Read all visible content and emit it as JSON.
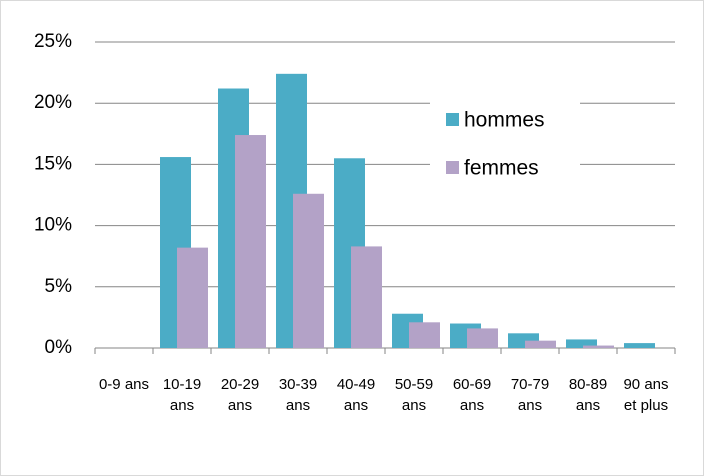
{
  "chart_data": {
    "type": "bar",
    "categories": [
      "0-9 ans",
      "10-19 ans",
      "20-29 ans",
      "30-39 ans",
      "40-49 ans",
      "50-59 ans",
      "60-69 ans",
      "70-79 ans",
      "80-89 ans",
      "90 ans et plus"
    ],
    "series": [
      {
        "name": "hommes",
        "color": "#4bacc6",
        "values": [
          0,
          15.6,
          21.2,
          22.4,
          15.5,
          2.8,
          2.0,
          1.2,
          0.7,
          0.4
        ]
      },
      {
        "name": "femmes",
        "color": "#b3a2c7",
        "values": [
          0,
          8.2,
          17.4,
          12.6,
          8.3,
          2.1,
          1.6,
          0.6,
          0.2,
          0
        ]
      }
    ],
    "ylim": [
      0,
      25
    ],
    "yticks": [
      {
        "value": 0,
        "label": "0%"
      },
      {
        "value": 5,
        "label": "5%"
      },
      {
        "value": 10,
        "label": "10%"
      },
      {
        "value": 15,
        "label": "15%"
      },
      {
        "value": 20,
        "label": "20%"
      },
      {
        "value": 25,
        "label": "25%"
      }
    ],
    "grid": true,
    "legend": "right"
  }
}
